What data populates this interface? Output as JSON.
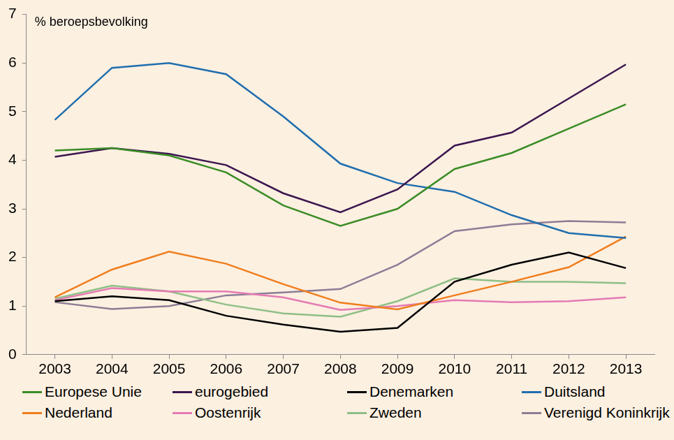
{
  "chart_data": {
    "type": "line",
    "y_label": "% beroepsbevolking",
    "categories": [
      "2003",
      "2004",
      "2005",
      "2006",
      "2007",
      "2008",
      "2009",
      "2010",
      "2011",
      "2012",
      "2013"
    ],
    "series": [
      {
        "name": "Europese Unie",
        "color": "#3a8c25",
        "values": [
          4.2,
          4.25,
          4.1,
          3.75,
          3.07,
          2.65,
          3.0,
          3.82,
          4.15,
          4.65,
          5.15
        ]
      },
      {
        "name": "eurogebied",
        "color": "#3b154f",
        "values": [
          4.07,
          4.25,
          4.13,
          3.9,
          3.32,
          2.93,
          3.4,
          4.3,
          4.57,
          5.27,
          5.97
        ]
      },
      {
        "name": "Denemarken",
        "color": "#000000",
        "values": [
          1.1,
          1.2,
          1.12,
          0.8,
          0.62,
          0.47,
          0.55,
          1.5,
          1.85,
          2.1,
          1.78
        ]
      },
      {
        "name": "Duitsland",
        "color": "#1f6eae",
        "values": [
          4.83,
          5.9,
          6.0,
          5.77,
          4.9,
          3.93,
          3.53,
          3.35,
          2.87,
          2.5,
          2.4
        ]
      },
      {
        "name": "Nederland",
        "color": "#f07d1c",
        "values": [
          1.18,
          1.75,
          2.12,
          1.87,
          1.45,
          1.07,
          0.93,
          1.22,
          1.5,
          1.8,
          2.43
        ]
      },
      {
        "name": "Oostenrijk",
        "color": "#e57ab3",
        "values": [
          1.12,
          1.37,
          1.3,
          1.3,
          1.18,
          0.92,
          1.0,
          1.12,
          1.08,
          1.1,
          1.18
        ]
      },
      {
        "name": "Zweden",
        "color": "#8ebf86",
        "values": [
          1.15,
          1.42,
          1.3,
          1.03,
          0.85,
          0.78,
          1.1,
          1.57,
          1.5,
          1.5,
          1.47
        ]
      },
      {
        "name": "Verenigd Koninkrijk",
        "color": "#8b7d95",
        "values": [
          1.08,
          0.94,
          1.0,
          1.22,
          1.28,
          1.35,
          1.85,
          2.54,
          2.68,
          2.75,
          2.72
        ]
      }
    ],
    "ylim": [
      0,
      7
    ],
    "yticks": [
      0,
      1,
      2,
      3,
      4,
      5,
      6,
      7
    ],
    "grid": false,
    "legend": "bottom"
  }
}
